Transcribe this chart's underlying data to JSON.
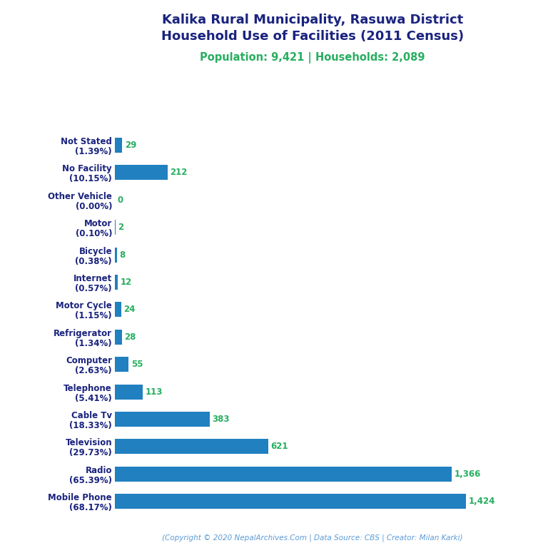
{
  "title_line1": "Kalika Rural Municipality, Rasuwa District",
  "title_line2": "Household Use of Facilities (2011 Census)",
  "subtitle": "Population: 9,421 | Households: 2,089",
  "footer": "(Copyright © 2020 NepalArchives.Com | Data Source: CBS | Creator: Milan Karki)",
  "categories": [
    "Mobile Phone\n(68.17%)",
    "Radio\n(65.39%)",
    "Television\n(29.73%)",
    "Cable Tv\n(18.33%)",
    "Telephone\n(5.41%)",
    "Computer\n(2.63%)",
    "Refrigerator\n(1.34%)",
    "Motor Cycle\n(1.15%)",
    "Internet\n(0.57%)",
    "Bicycle\n(0.38%)",
    "Motor\n(0.10%)",
    "Other Vehicle\n(0.00%)",
    "No Facility\n(10.15%)",
    "Not Stated\n(1.39%)"
  ],
  "values": [
    1424,
    1366,
    621,
    383,
    113,
    55,
    28,
    24,
    12,
    8,
    2,
    0,
    212,
    29
  ],
  "bar_color": "#2080C0",
  "value_color": "#27AE60",
  "title_color": "#1a237e",
  "subtitle_color": "#27AE60",
  "footer_color": "#5b9bd5",
  "background_color": "#ffffff",
  "xlim": [
    0,
    1600
  ],
  "value_fontsize": 8.5,
  "label_fontsize": 8.5,
  "title_fontsize": 13,
  "subtitle_fontsize": 10.5,
  "footer_fontsize": 7.5
}
